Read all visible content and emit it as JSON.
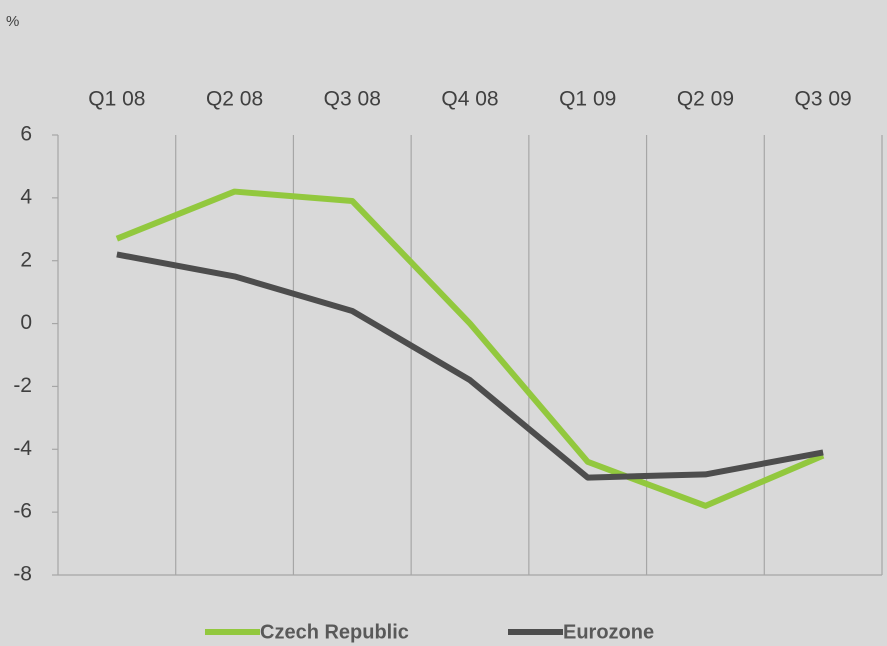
{
  "chart_data": {
    "type": "line",
    "y_unit_label": "%",
    "categories": [
      "Q1 08",
      "Q2 08",
      "Q3 08",
      "Q4 08",
      "Q1 09",
      "Q2 09",
      "Q3 09"
    ],
    "series": [
      {
        "name": "Czech Republic",
        "color": "#92c83e",
        "values": [
          2.7,
          4.2,
          3.9,
          0.0,
          -4.4,
          -5.8,
          -4.2
        ]
      },
      {
        "name": "Eurozone",
        "color": "#4d4d4d",
        "values": [
          2.2,
          1.5,
          0.4,
          -1.8,
          -4.9,
          -4.8,
          -4.1
        ]
      }
    ],
    "ylim": [
      -8,
      6
    ],
    "yticks": [
      -8,
      -6,
      -4,
      -2,
      0,
      2,
      4,
      6
    ],
    "grid": true,
    "legend": "bottom"
  }
}
